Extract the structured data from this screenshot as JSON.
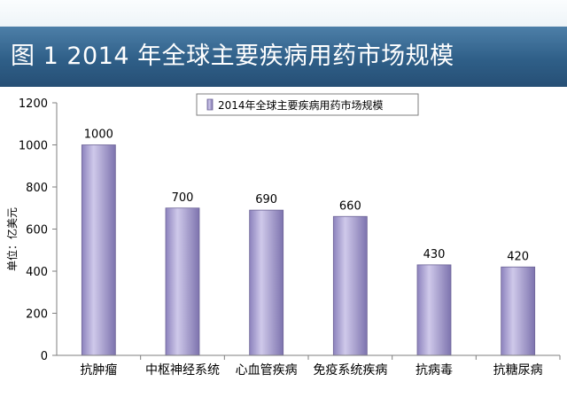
{
  "header": {
    "title": "图 1   2014 年全球主要疾病用药市场规模"
  },
  "colors": {
    "header_bg": "#2f5f88",
    "bar_fill": "#a89fd0",
    "bar_edge": "#6d6497",
    "axis": "#7f7f7f",
    "text": "#000000"
  },
  "chart_data": {
    "type": "bar",
    "title": "",
    "legend": {
      "label": "2014年全球主要疾病用药市场规模",
      "position": "top-center"
    },
    "ylabel": "单位：亿美元",
    "xlabel": "",
    "categories": [
      "抗肿瘤",
      "中枢神经系统",
      "心血管疾病",
      "免疫系统疾病",
      "抗病毒",
      "抗糖尿病"
    ],
    "values": [
      1000,
      700,
      690,
      660,
      430,
      420
    ],
    "data_labels": [
      "1000",
      "700",
      "690",
      "660",
      "430",
      "420"
    ],
    "ylim": [
      0,
      1200
    ],
    "yticks": [
      0,
      200,
      400,
      600,
      800,
      1000,
      1200
    ],
    "grid": false
  }
}
